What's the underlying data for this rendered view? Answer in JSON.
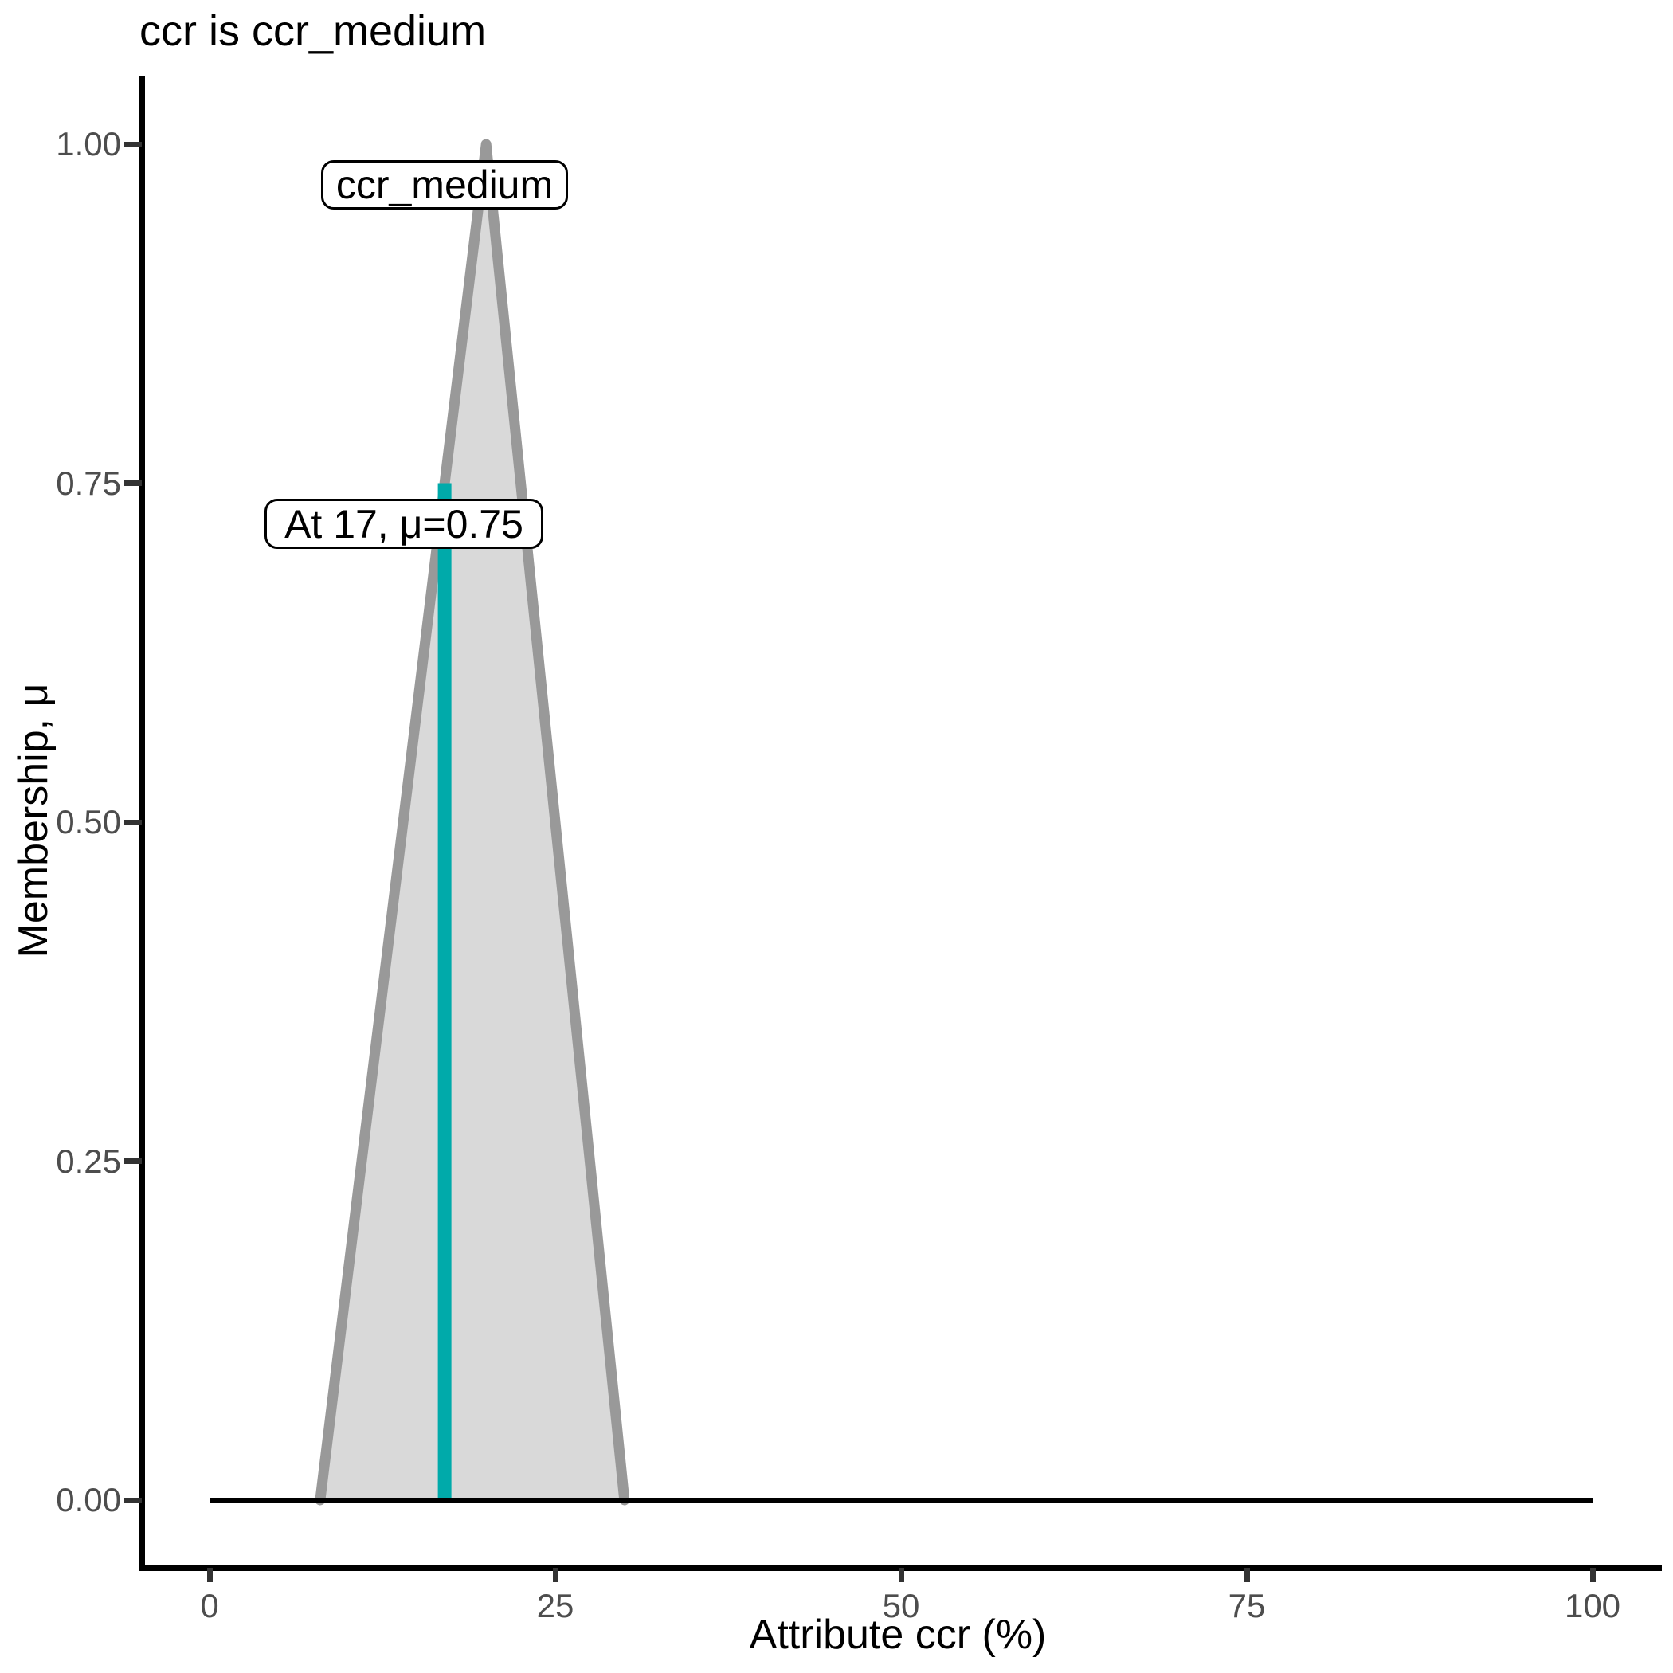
{
  "header": {
    "title": "ccr is ccr_medium"
  },
  "chart_data": {
    "type": "area",
    "title": "ccr is ccr_medium",
    "xlabel": "Attribute ccr (%)",
    "ylabel": "Membership, μ",
    "xlim": [
      0,
      100
    ],
    "ylim": [
      0,
      1
    ],
    "grid": false,
    "x_ticks": [
      "0",
      "25",
      "50",
      "75",
      "100"
    ],
    "x_tick_values": [
      0,
      25,
      50,
      75,
      100
    ],
    "y_ticks": [
      "0.00",
      "0.25",
      "0.50",
      "0.75",
      "1.00"
    ],
    "y_tick_values": [
      0,
      0.25,
      0.5,
      0.75,
      1
    ],
    "series": [
      {
        "name": "baseline",
        "type": "line",
        "x": [
          0,
          100
        ],
        "y": [
          0,
          0
        ],
        "color": "#000000",
        "width": 6
      },
      {
        "name": "ccr_medium_membership_function",
        "type": "area",
        "x": [
          8,
          20,
          30
        ],
        "y": [
          0,
          1,
          0
        ],
        "fill": "#d9d9d9",
        "stroke": "#999999",
        "stroke_width": 13
      },
      {
        "name": "input_value_line",
        "type": "vline",
        "x": 17,
        "y": [
          0,
          0.75
        ],
        "color": "#00aaaa",
        "width": 17
      }
    ],
    "annotations": [
      {
        "text": "ccr_medium",
        "x": 17,
        "y": 0.93
      },
      {
        "text": "At 17, μ=0.75",
        "x": 14,
        "y": 0.71
      }
    ],
    "input": {
      "x": 17,
      "mu": 0.75
    }
  },
  "colors": {
    "accent_teal": "#00aaaa",
    "mf_fill": "#d9d9d9",
    "mf_stroke": "#999999",
    "axis": "#000000",
    "tick_label": "#4d4d4d",
    "background": "#ffffff"
  }
}
